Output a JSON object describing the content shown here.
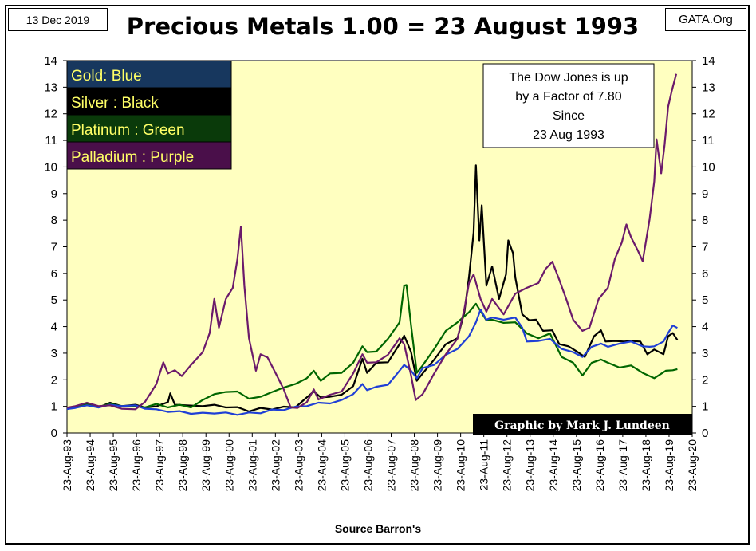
{
  "header": {
    "date": "13 Dec 2019",
    "site": "GATA.Org"
  },
  "chart_data": {
    "type": "line",
    "title": "Precious Metals  1.00 = 23 August 1993",
    "xlabel": "Source Barron's",
    "ylabel": "",
    "ylim": [
      0,
      14
    ],
    "yticks": [
      0,
      1,
      2,
      3,
      4,
      5,
      6,
      7,
      8,
      9,
      10,
      11,
      12,
      13,
      14
    ],
    "xlim": [
      1993.64,
      2020.64
    ],
    "xticks": [
      "23-Aug-93",
      "23-Aug-94",
      "23-Aug-95",
      "23-Aug-96",
      "23-Aug-97",
      "23-Aug-98",
      "23-Aug-99",
      "23-Aug-00",
      "23-Aug-01",
      "23-Aug-02",
      "23-Aug-03",
      "23-Aug-04",
      "23-Aug-05",
      "23-Aug-06",
      "23-Aug-07",
      "23-Aug-08",
      "23-Aug-09",
      "23-Aug-10",
      "23-Aug-11",
      "23-Aug-12",
      "23-Aug-13",
      "23-Aug-14",
      "23-Aug-15",
      "23-Aug-16",
      "23-Aug-17",
      "23-Aug-18",
      "23-Aug-19",
      "23-Aug-20"
    ],
    "grid": false,
    "plot_background": "#ffffc0",
    "legend": {
      "placement": "top-left",
      "entries": [
        {
          "label": "Gold: Blue",
          "bg": "#17375e"
        },
        {
          "label": "Silver : Black",
          "bg": "#000000"
        },
        {
          "label": "Platinum : Green",
          "bg": "#0a3a0a"
        },
        {
          "label": "Palladium : Purple",
          "bg": "#4a0f4a"
        }
      ],
      "text_color": "#ffff66"
    },
    "annotations": [
      {
        "lines": [
          "The Dow Jones is up",
          "by a Factor of 7.80",
          "Since",
          "23 Aug 1993"
        ]
      },
      {
        "lines": [
          "Graphic by Mark J. Lundeen"
        ]
      }
    ],
    "series": [
      {
        "color": "#000000",
        "points": [
          [
            1993.64,
            0.9
          ],
          [
            1994.0,
            1.02
          ],
          [
            1994.5,
            1.05
          ],
          [
            1995.0,
            1.0
          ],
          [
            1995.5,
            1.1
          ],
          [
            1996.0,
            1.05
          ],
          [
            1996.6,
            1.02
          ],
          [
            1997.0,
            1.0
          ],
          [
            1997.5,
            0.96
          ],
          [
            1998.0,
            1.2
          ],
          [
            1998.1,
            1.45
          ],
          [
            1998.3,
            1.1
          ],
          [
            1998.8,
            1.0
          ],
          [
            1999.5,
            1.05
          ],
          [
            2000.0,
            1.02
          ],
          [
            2000.5,
            1.0
          ],
          [
            2001.0,
            0.93
          ],
          [
            2001.5,
            0.85
          ],
          [
            2002.0,
            0.9
          ],
          [
            2002.5,
            0.92
          ],
          [
            2003.0,
            0.95
          ],
          [
            2003.5,
            1.0
          ],
          [
            2004.0,
            1.3
          ],
          [
            2004.3,
            1.6
          ],
          [
            2004.6,
            1.3
          ],
          [
            2005.0,
            1.4
          ],
          [
            2005.5,
            1.4
          ],
          [
            2006.0,
            1.8
          ],
          [
            2006.4,
            2.75
          ],
          [
            2006.6,
            2.3
          ],
          [
            2007.0,
            2.6
          ],
          [
            2007.5,
            2.7
          ],
          [
            2008.0,
            3.3
          ],
          [
            2008.2,
            3.7
          ],
          [
            2008.5,
            3.0
          ],
          [
            2008.75,
            2.0
          ],
          [
            2009.0,
            2.2
          ],
          [
            2009.5,
            2.8
          ],
          [
            2010.0,
            3.3
          ],
          [
            2010.5,
            3.6
          ],
          [
            2010.8,
            4.5
          ],
          [
            2011.0,
            5.9
          ],
          [
            2011.2,
            7.5
          ],
          [
            2011.3,
            10.1
          ],
          [
            2011.45,
            7.2
          ],
          [
            2011.55,
            8.6
          ],
          [
            2011.75,
            5.5
          ],
          [
            2012.0,
            6.3
          ],
          [
            2012.3,
            5.0
          ],
          [
            2012.6,
            6.0
          ],
          [
            2012.7,
            7.2
          ],
          [
            2012.9,
            6.8
          ],
          [
            2013.0,
            5.8
          ],
          [
            2013.3,
            4.5
          ],
          [
            2013.6,
            4.2
          ],
          [
            2013.9,
            4.3
          ],
          [
            2014.2,
            3.8
          ],
          [
            2014.6,
            3.9
          ],
          [
            2014.9,
            3.3
          ],
          [
            2015.3,
            3.3
          ],
          [
            2015.7,
            3.0
          ],
          [
            2016.0,
            2.9
          ],
          [
            2016.4,
            3.6
          ],
          [
            2016.7,
            3.9
          ],
          [
            2016.9,
            3.4
          ],
          [
            2017.3,
            3.5
          ],
          [
            2017.7,
            3.4
          ],
          [
            2018.0,
            3.5
          ],
          [
            2018.4,
            3.4
          ],
          [
            2018.7,
            3.0
          ],
          [
            2019.0,
            3.1
          ],
          [
            2019.4,
            3.0
          ],
          [
            2019.6,
            3.6
          ],
          [
            2019.8,
            3.8
          ],
          [
            2020.0,
            3.5
          ]
        ]
      },
      {
        "color": "#006600",
        "points": [
          [
            1993.64,
            0.92
          ],
          [
            1994.0,
            1.0
          ],
          [
            1994.5,
            1.03
          ],
          [
            1995.0,
            1.02
          ],
          [
            1995.5,
            1.05
          ],
          [
            1996.0,
            1.05
          ],
          [
            1996.6,
            0.97
          ],
          [
            1997.0,
            1.0
          ],
          [
            1997.5,
            1.05
          ],
          [
            1998.0,
            1.0
          ],
          [
            1998.5,
            1.02
          ],
          [
            1999.0,
            1.0
          ],
          [
            1999.5,
            1.2
          ],
          [
            2000.0,
            1.5
          ],
          [
            2000.5,
            1.5
          ],
          [
            2001.0,
            1.6
          ],
          [
            2001.5,
            1.25
          ],
          [
            2002.0,
            1.4
          ],
          [
            2002.5,
            1.5
          ],
          [
            2003.0,
            1.75
          ],
          [
            2003.5,
            1.8
          ],
          [
            2004.0,
            2.1
          ],
          [
            2004.3,
            2.3
          ],
          [
            2004.6,
            2.0
          ],
          [
            2005.0,
            2.2
          ],
          [
            2005.5,
            2.3
          ],
          [
            2006.0,
            2.6
          ],
          [
            2006.4,
            3.3
          ],
          [
            2006.6,
            3.0
          ],
          [
            2007.0,
            3.1
          ],
          [
            2007.5,
            3.5
          ],
          [
            2008.0,
            4.2
          ],
          [
            2008.2,
            5.5
          ],
          [
            2008.3,
            5.6
          ],
          [
            2008.5,
            4.0
          ],
          [
            2008.75,
            2.3
          ],
          [
            2009.0,
            2.5
          ],
          [
            2009.5,
            3.2
          ],
          [
            2010.0,
            3.8
          ],
          [
            2010.5,
            4.2
          ],
          [
            2011.0,
            4.5
          ],
          [
            2011.3,
            4.9
          ],
          [
            2011.75,
            4.2
          ],
          [
            2012.0,
            4.3
          ],
          [
            2012.5,
            4.1
          ],
          [
            2013.0,
            4.2
          ],
          [
            2013.5,
            3.7
          ],
          [
            2014.0,
            3.6
          ],
          [
            2014.5,
            3.7
          ],
          [
            2015.0,
            2.9
          ],
          [
            2015.5,
            2.6
          ],
          [
            2015.9,
            2.2
          ],
          [
            2016.3,
            2.6
          ],
          [
            2016.7,
            2.8
          ],
          [
            2017.0,
            2.6
          ],
          [
            2017.5,
            2.5
          ],
          [
            2018.0,
            2.5
          ],
          [
            2018.5,
            2.3
          ],
          [
            2018.8,
            2.1
          ],
          [
            2019.0,
            2.1
          ],
          [
            2019.5,
            2.3
          ],
          [
            2019.8,
            2.4
          ],
          [
            2020.0,
            2.4
          ]
        ]
      },
      {
        "color": "#1f3fd6",
        "points": [
          [
            1993.64,
            0.9
          ],
          [
            1994.0,
            0.98
          ],
          [
            1994.5,
            1.0
          ],
          [
            1995.0,
            1.0
          ],
          [
            1995.5,
            1.02
          ],
          [
            1996.0,
            1.05
          ],
          [
            1996.6,
            1.0
          ],
          [
            1997.0,
            0.95
          ],
          [
            1997.5,
            0.85
          ],
          [
            1998.0,
            0.83
          ],
          [
            1998.5,
            0.78
          ],
          [
            1999.0,
            0.76
          ],
          [
            1999.5,
            0.72
          ],
          [
            2000.0,
            0.77
          ],
          [
            2000.5,
            0.73
          ],
          [
            2001.0,
            0.72
          ],
          [
            2001.5,
            0.73
          ],
          [
            2002.0,
            0.78
          ],
          [
            2002.5,
            0.84
          ],
          [
            2003.0,
            0.9
          ],
          [
            2003.5,
            0.95
          ],
          [
            2004.0,
            1.05
          ],
          [
            2004.5,
            1.1
          ],
          [
            2005.0,
            1.15
          ],
          [
            2005.5,
            1.2
          ],
          [
            2006.0,
            1.5
          ],
          [
            2006.4,
            1.8
          ],
          [
            2006.6,
            1.65
          ],
          [
            2007.0,
            1.7
          ],
          [
            2007.5,
            1.85
          ],
          [
            2008.0,
            2.3
          ],
          [
            2008.2,
            2.6
          ],
          [
            2008.5,
            2.3
          ],
          [
            2008.75,
            2.1
          ],
          [
            2009.0,
            2.4
          ],
          [
            2009.5,
            2.6
          ],
          [
            2010.0,
            2.9
          ],
          [
            2010.5,
            3.2
          ],
          [
            2011.0,
            3.6
          ],
          [
            2011.3,
            4.2
          ],
          [
            2011.5,
            4.6
          ],
          [
            2011.75,
            4.3
          ],
          [
            2012.0,
            4.3
          ],
          [
            2012.5,
            4.3
          ],
          [
            2013.0,
            4.3
          ],
          [
            2013.3,
            4.0
          ],
          [
            2013.5,
            3.4
          ],
          [
            2014.0,
            3.5
          ],
          [
            2014.5,
            3.5
          ],
          [
            2015.0,
            3.2
          ],
          [
            2015.5,
            3.0
          ],
          [
            2015.9,
            2.9
          ],
          [
            2016.3,
            3.2
          ],
          [
            2016.7,
            3.4
          ],
          [
            2017.0,
            3.2
          ],
          [
            2017.5,
            3.4
          ],
          [
            2018.0,
            3.4
          ],
          [
            2018.5,
            3.3
          ],
          [
            2018.8,
            3.2
          ],
          [
            2019.0,
            3.3
          ],
          [
            2019.4,
            3.4
          ],
          [
            2019.6,
            3.8
          ],
          [
            2019.8,
            4.0
          ],
          [
            2020.0,
            3.95
          ]
        ]
      },
      {
        "color": "#6b1a6b",
        "points": [
          [
            1993.64,
            0.95
          ],
          [
            1994.0,
            1.05
          ],
          [
            1994.5,
            1.1
          ],
          [
            1995.0,
            1.05
          ],
          [
            1995.5,
            1.0
          ],
          [
            1996.0,
            0.95
          ],
          [
            1996.6,
            0.85
          ],
          [
            1997.0,
            1.2
          ],
          [
            1997.5,
            1.8
          ],
          [
            1997.8,
            2.7
          ],
          [
            1998.0,
            2.2
          ],
          [
            1998.3,
            2.4
          ],
          [
            1998.6,
            2.1
          ],
          [
            1999.0,
            2.6
          ],
          [
            1999.5,
            3.0
          ],
          [
            1999.8,
            3.8
          ],
          [
            2000.0,
            5.0
          ],
          [
            2000.2,
            4.0
          ],
          [
            2000.5,
            5.0
          ],
          [
            2000.8,
            5.5
          ],
          [
            2001.0,
            6.5
          ],
          [
            2001.15,
            7.8
          ],
          [
            2001.3,
            5.5
          ],
          [
            2001.5,
            3.6
          ],
          [
            2001.8,
            2.3
          ],
          [
            2002.0,
            3.0
          ],
          [
            2002.3,
            2.8
          ],
          [
            2002.7,
            2.2
          ],
          [
            2003.0,
            1.6
          ],
          [
            2003.3,
            1.0
          ],
          [
            2003.6,
            0.9
          ],
          [
            2004.0,
            1.2
          ],
          [
            2004.3,
            1.6
          ],
          [
            2004.5,
            1.3
          ],
          [
            2005.0,
            1.4
          ],
          [
            2005.5,
            1.6
          ],
          [
            2006.0,
            2.2
          ],
          [
            2006.4,
            3.0
          ],
          [
            2006.6,
            2.6
          ],
          [
            2007.0,
            2.7
          ],
          [
            2007.5,
            2.9
          ],
          [
            2008.0,
            3.6
          ],
          [
            2008.2,
            3.3
          ],
          [
            2008.5,
            2.2
          ],
          [
            2008.7,
            1.2
          ],
          [
            2009.0,
            1.5
          ],
          [
            2009.5,
            2.2
          ],
          [
            2010.0,
            3.0
          ],
          [
            2010.5,
            3.5
          ],
          [
            2010.8,
            4.7
          ],
          [
            2011.0,
            5.6
          ],
          [
            2011.2,
            6.0
          ],
          [
            2011.5,
            5.0
          ],
          [
            2011.75,
            4.6
          ],
          [
            2012.0,
            5.0
          ],
          [
            2012.5,
            4.5
          ],
          [
            2013.0,
            5.2
          ],
          [
            2013.5,
            5.5
          ],
          [
            2014.0,
            5.6
          ],
          [
            2014.3,
            6.2
          ],
          [
            2014.6,
            6.4
          ],
          [
            2014.9,
            5.8
          ],
          [
            2015.2,
            5.0
          ],
          [
            2015.5,
            4.3
          ],
          [
            2015.9,
            3.8
          ],
          [
            2016.2,
            4.0
          ],
          [
            2016.6,
            5.0
          ],
          [
            2017.0,
            5.5
          ],
          [
            2017.3,
            6.5
          ],
          [
            2017.6,
            7.2
          ],
          [
            2017.8,
            7.8
          ],
          [
            2018.0,
            7.4
          ],
          [
            2018.3,
            6.8
          ],
          [
            2018.5,
            6.5
          ],
          [
            2018.8,
            8.0
          ],
          [
            2019.0,
            9.5
          ],
          [
            2019.1,
            11.0
          ],
          [
            2019.3,
            9.8
          ],
          [
            2019.45,
            10.8
          ],
          [
            2019.6,
            12.3
          ],
          [
            2019.75,
            12.8
          ],
          [
            2019.95,
            13.5
          ]
        ]
      }
    ]
  }
}
